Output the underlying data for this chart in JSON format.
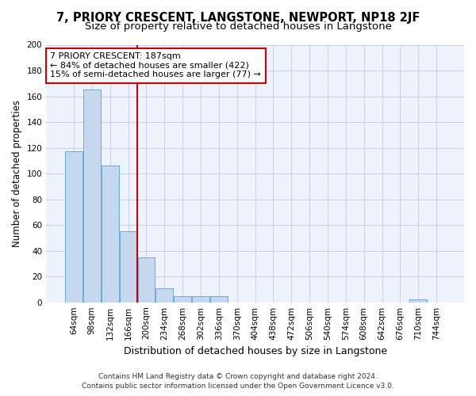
{
  "title": "7, PRIORY CRESCENT, LANGSTONE, NEWPORT, NP18 2JF",
  "subtitle": "Size of property relative to detached houses in Langstone",
  "xlabel": "Distribution of detached houses by size in Langstone",
  "ylabel": "Number of detached properties",
  "bar_labels": [
    "64sqm",
    "98sqm",
    "132sqm",
    "166sqm",
    "200sqm",
    "234sqm",
    "268sqm",
    "302sqm",
    "336sqm",
    "370sqm",
    "404sqm",
    "438sqm",
    "472sqm",
    "506sqm",
    "540sqm",
    "574sqm",
    "608sqm",
    "642sqm",
    "676sqm",
    "710sqm",
    "744sqm"
  ],
  "bar_values": [
    117,
    165,
    106,
    55,
    35,
    11,
    5,
    5,
    5,
    0,
    0,
    0,
    0,
    0,
    0,
    0,
    0,
    0,
    0,
    2,
    0
  ],
  "bar_color": "#c5d8f0",
  "bar_edge_color": "#6aaad4",
  "vline_position": 3.5,
  "annotation_line1": "7 PRIORY CRESCENT: 187sqm",
  "annotation_line2": "← 84% of detached houses are smaller (422)",
  "annotation_line3": "15% of semi-detached houses are larger (77) →",
  "annotation_box_facecolor": "#ffffff",
  "annotation_box_edgecolor": "#cc0000",
  "vline_color": "#cc0000",
  "ylim": [
    0,
    200
  ],
  "yticks": [
    0,
    20,
    40,
    60,
    80,
    100,
    120,
    140,
    160,
    180,
    200
  ],
  "footer_line1": "Contains HM Land Registry data © Crown copyright and database right 2024.",
  "footer_line2": "Contains public sector information licensed under the Open Government Licence v3.0.",
  "bg_color": "#eef2fb",
  "grid_color": "#c8cfe8",
  "title_fontsize": 10.5,
  "subtitle_fontsize": 9.5,
  "xlabel_fontsize": 9,
  "ylabel_fontsize": 8.5,
  "tick_fontsize": 7.5,
  "annotation_fontsize": 8,
  "footer_fontsize": 6.5
}
